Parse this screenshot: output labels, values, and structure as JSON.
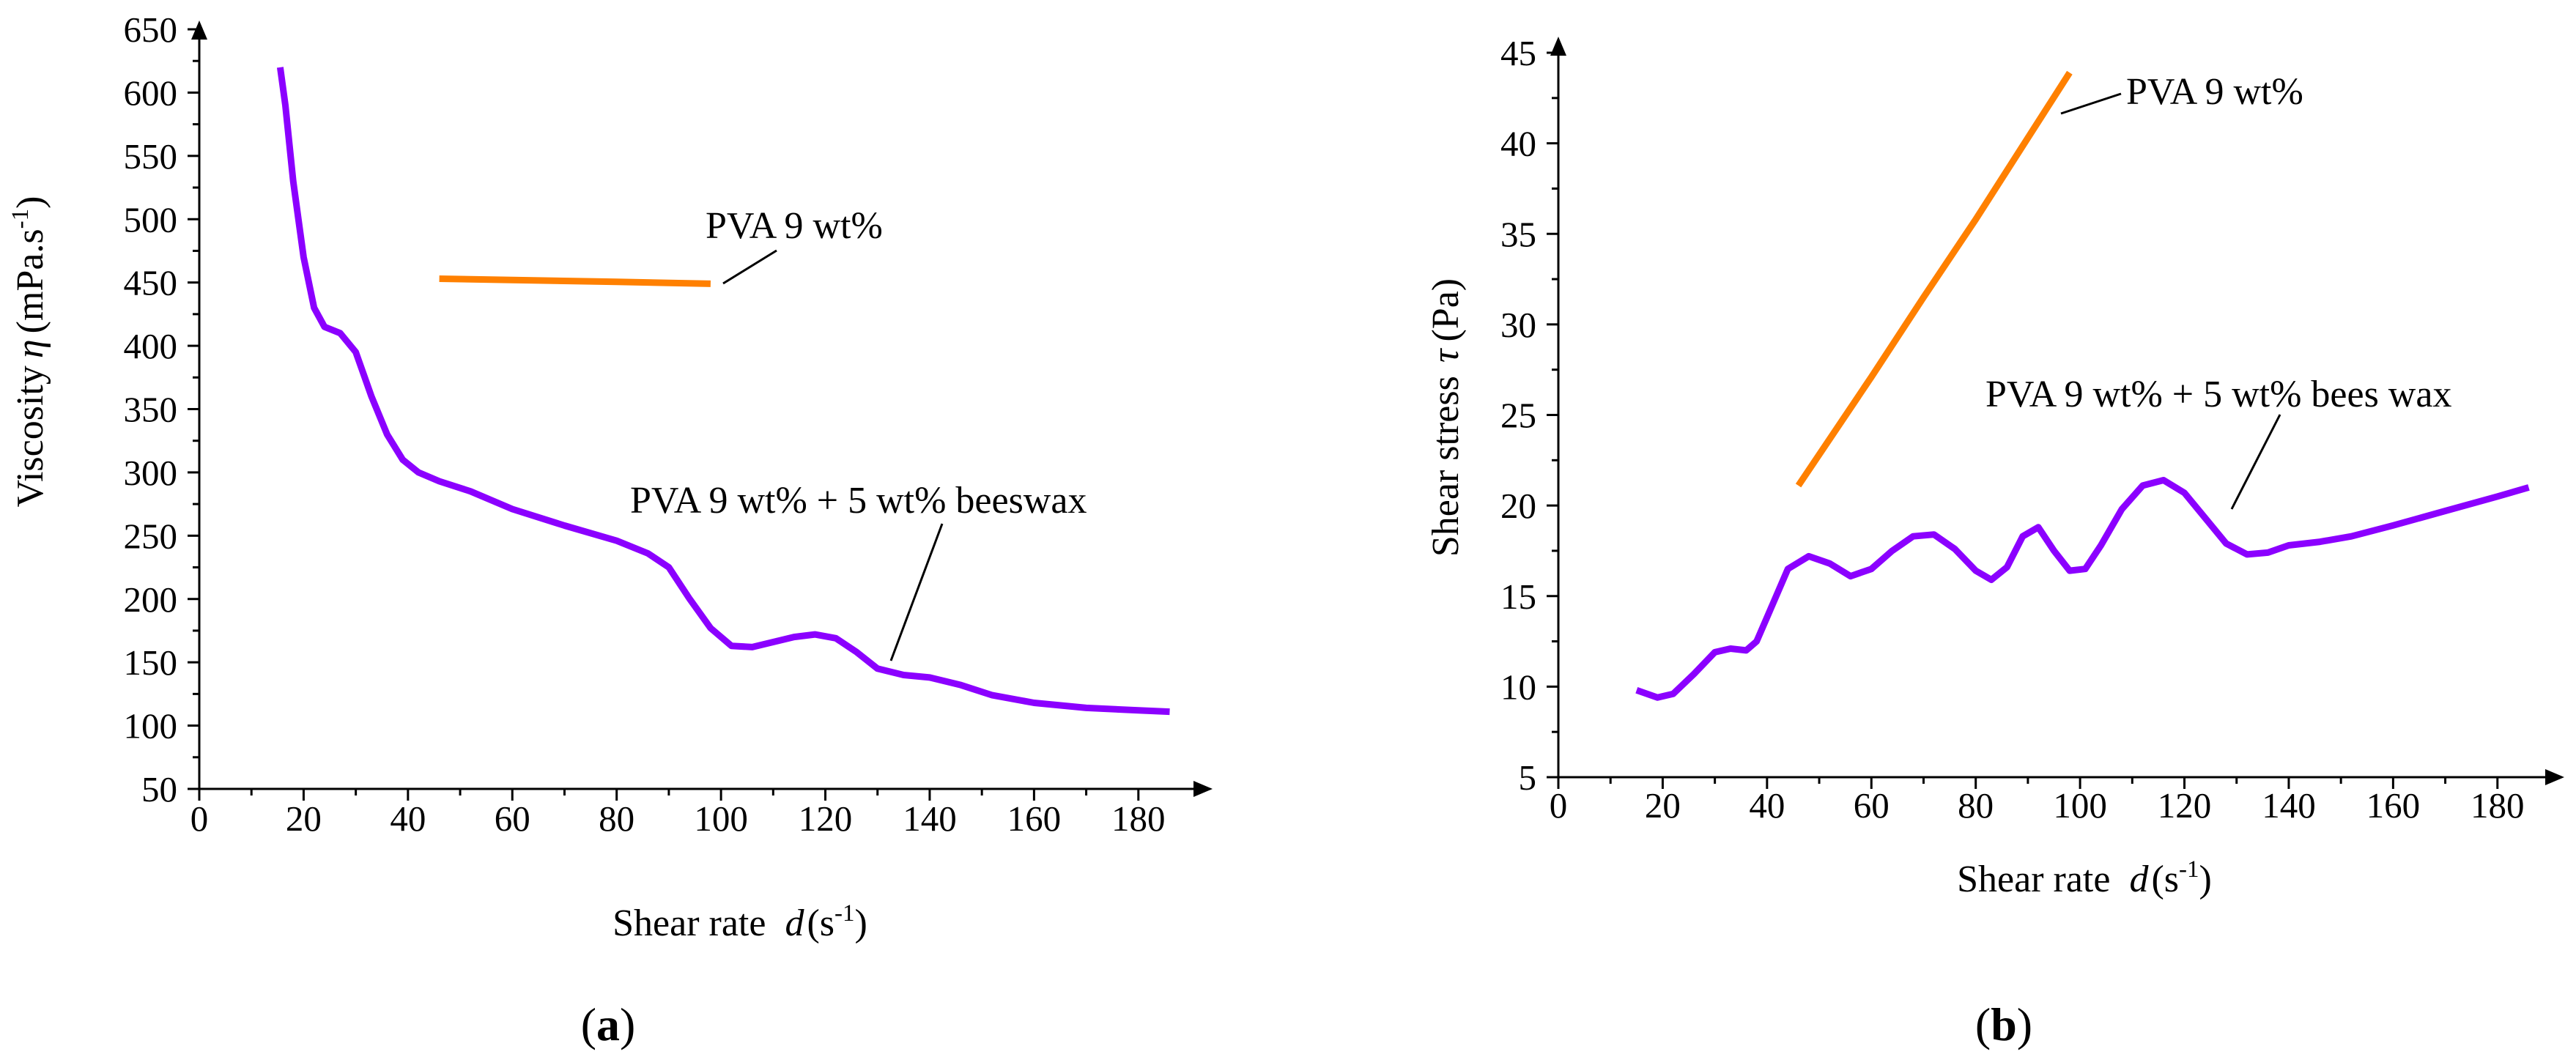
{
  "colors": {
    "pva": "#FF8000",
    "beeswax": "#8B00FF",
    "axis": "#000000"
  },
  "chart_data": [
    {
      "type": "line",
      "panel_label": "a",
      "title": "",
      "xlabel": {
        "main": "Shear rate",
        "var": "d",
        "open": "(s",
        "exp": "-1",
        "close": ")"
      },
      "ylabel": {
        "main": "Viscosity",
        "var": "η",
        "unit": "(mPa.s",
        "exp": "-1",
        "close": ")"
      },
      "xlim": [
        0,
        190
      ],
      "ylim": [
        50,
        650
      ],
      "xticks": [
        0,
        20,
        40,
        60,
        80,
        100,
        120,
        140,
        160,
        180
      ],
      "yticks": [
        50,
        100,
        150,
        200,
        250,
        300,
        350,
        400,
        450,
        500,
        550,
        600,
        650
      ],
      "series": [
        {
          "name": "PVA 9 wt%",
          "color_key": "pva",
          "annotation": "PVA 9 wt%",
          "points": [
            [
              46,
              453
            ],
            [
              60,
              452
            ],
            [
              80,
              450.5
            ],
            [
              98,
              449
            ]
          ]
        },
        {
          "name": "PVA 9 wt% + 5 wt% beeswax",
          "color_key": "beeswax",
          "annotation": "PVA 9 wt% + 5 wt% beeswax",
          "points": [
            [
              15.5,
              620
            ],
            [
              16.5,
              590
            ],
            [
              18,
              530
            ],
            [
              20,
              470
            ],
            [
              22,
              430
            ],
            [
              24,
              415
            ],
            [
              27,
              410
            ],
            [
              30,
              395
            ],
            [
              33,
              360
            ],
            [
              36,
              330
            ],
            [
              39,
              310
            ],
            [
              42,
              300
            ],
            [
              46,
              293
            ],
            [
              52,
              285
            ],
            [
              60,
              271
            ],
            [
              70,
              258
            ],
            [
              80,
              246
            ],
            [
              86,
              236
            ],
            [
              90,
              225
            ],
            [
              94,
              200
            ],
            [
              98,
              177
            ],
            [
              102,
              163
            ],
            [
              106,
              162
            ],
            [
              110,
              166
            ],
            [
              114,
              170
            ],
            [
              118,
              172
            ],
            [
              122,
              169
            ],
            [
              126,
              158
            ],
            [
              130,
              145
            ],
            [
              135,
              140
            ],
            [
              140,
              138
            ],
            [
              146,
              132
            ],
            [
              152,
              124
            ],
            [
              160,
              118
            ],
            [
              170,
              114
            ],
            [
              180,
              112
            ],
            [
              186,
              111
            ]
          ]
        }
      ]
    },
    {
      "type": "line",
      "panel_label": "b",
      "title": "",
      "xlabel": {
        "main": "Shear rate",
        "var": "d",
        "open": "(s",
        "exp": "-1",
        "close": ")"
      },
      "ylabel": {
        "main": "Shear stress",
        "var": "τ",
        "unit": "(Pa)"
      },
      "xlim": [
        0,
        190
      ],
      "ylim": [
        5,
        45
      ],
      "xticks": [
        0,
        20,
        40,
        60,
        80,
        100,
        120,
        140,
        160,
        180
      ],
      "yticks": [
        5,
        10,
        15,
        20,
        25,
        30,
        35,
        40,
        45
      ],
      "series": [
        {
          "name": "PVA 9 wt%",
          "color_key": "pva",
          "annotation": "PVA 9 wt%",
          "points": [
            [
              46,
              21.1
            ],
            [
              60,
              27.1
            ],
            [
              70,
              31.5
            ],
            [
              80,
              35.8
            ],
            [
              90,
              40.3
            ],
            [
              98,
              43.9
            ]
          ]
        },
        {
          "name": "PVA 9 wt% + 5 wt% bees wax",
          "color_key": "beeswax",
          "annotation": "PVA 9 wt% + 5 wt% bees wax",
          "points": [
            [
              15,
              9.8
            ],
            [
              19,
              9.4
            ],
            [
              22,
              9.6
            ],
            [
              26,
              10.7
            ],
            [
              30,
              11.9
            ],
            [
              33,
              12.1
            ],
            [
              36,
              12.0
            ],
            [
              38,
              12.5
            ],
            [
              41,
              14.5
            ],
            [
              44,
              16.5
            ],
            [
              48,
              17.2
            ],
            [
              52,
              16.8
            ],
            [
              56,
              16.1
            ],
            [
              60,
              16.5
            ],
            [
              64,
              17.5
            ],
            [
              68,
              18.3
            ],
            [
              72,
              18.4
            ],
            [
              76,
              17.6
            ],
            [
              80,
              16.4
            ],
            [
              83,
              15.9
            ],
            [
              86,
              16.6
            ],
            [
              89,
              18.3
            ],
            [
              92,
              18.8
            ],
            [
              95,
              17.5
            ],
            [
              98,
              16.4
            ],
            [
              101,
              16.5
            ],
            [
              104,
              17.8
            ],
            [
              108,
              19.8
            ],
            [
              112,
              21.1
            ],
            [
              116,
              21.4
            ],
            [
              120,
              20.7
            ],
            [
              124,
              19.3
            ],
            [
              128,
              17.9
            ],
            [
              132,
              17.3
            ],
            [
              136,
              17.4
            ],
            [
              140,
              17.8
            ],
            [
              146,
              18.0
            ],
            [
              152,
              18.3
            ],
            [
              160,
              18.9
            ],
            [
              170,
              19.7
            ],
            [
              180,
              20.5
            ],
            [
              186,
              21.0
            ]
          ]
        }
      ]
    }
  ]
}
